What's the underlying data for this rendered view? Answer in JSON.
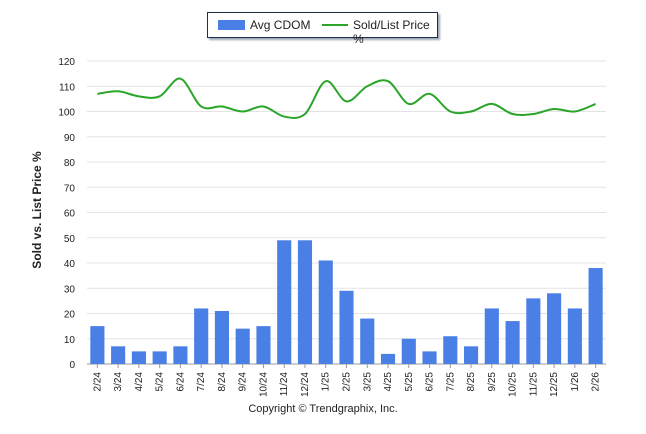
{
  "chart_data": {
    "type": "bar",
    "categories": [
      "2/24",
      "3/24",
      "4/24",
      "5/24",
      "6/24",
      "7/24",
      "8/24",
      "9/24",
      "10/24",
      "11/24",
      "12/24",
      "1/25",
      "2/25",
      "3/25",
      "4/25",
      "5/25",
      "6/25",
      "7/25",
      "8/25",
      "9/25",
      "10/25",
      "11/25",
      "12/25",
      "1/26",
      "2/26"
    ],
    "series": [
      {
        "name": "Avg CDOM",
        "type": "bar",
        "color": "#4a7fe6",
        "values": [
          15,
          7,
          5,
          5,
          7,
          22,
          21,
          14,
          15,
          49,
          49,
          41,
          29,
          18,
          4,
          10,
          5,
          11,
          7,
          22,
          17,
          26,
          28,
          22,
          38
        ]
      },
      {
        "name": "Sold/List Price %",
        "type": "line",
        "color": "#2aa52a",
        "values": [
          107,
          108,
          106,
          106,
          113,
          102,
          102,
          100,
          102,
          98,
          99,
          112,
          104,
          110,
          112,
          103,
          107,
          100,
          100,
          103,
          99,
          99,
          101,
          100,
          103
        ]
      }
    ],
    "ylabel": "Sold vs. List Price %",
    "ylim": [
      0,
      120
    ],
    "yticks": [
      0,
      10,
      20,
      30,
      40,
      50,
      60,
      70,
      80,
      90,
      100,
      110,
      120
    ],
    "grid": true,
    "legend_position": "top"
  },
  "footer": {
    "copyright": "Copyright © Trendgraphix, Inc."
  }
}
